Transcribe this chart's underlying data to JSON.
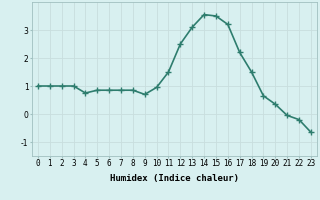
{
  "x": [
    0,
    1,
    2,
    3,
    4,
    5,
    6,
    7,
    8,
    9,
    10,
    11,
    12,
    13,
    14,
    15,
    16,
    17,
    18,
    19,
    20,
    21,
    22,
    23
  ],
  "y": [
    1.0,
    1.0,
    1.0,
    1.0,
    0.75,
    0.85,
    0.85,
    0.85,
    0.85,
    0.7,
    0.95,
    1.5,
    2.5,
    3.1,
    3.55,
    3.5,
    3.2,
    2.2,
    1.5,
    0.65,
    0.35,
    -0.05,
    -0.2,
    -0.65
  ],
  "line_color": "#2e7d6e",
  "marker": "P",
  "marker_size": 2.5,
  "bg_color": "#d8f0f0",
  "grid_color": "#c8dede",
  "xlabel": "Humidex (Indice chaleur)",
  "xlim": [
    -0.5,
    23.5
  ],
  "ylim": [
    -1.5,
    4.0
  ],
  "yticks": [
    -1,
    0,
    1,
    2,
    3
  ],
  "xtick_labels": [
    "0",
    "1",
    "2",
    "3",
    "4",
    "5",
    "6",
    "7",
    "8",
    "9",
    "10",
    "11",
    "12",
    "13",
    "14",
    "15",
    "16",
    "17",
    "18",
    "19",
    "20",
    "21",
    "22",
    "23"
  ],
  "xlabel_fontsize": 6.5,
  "tick_fontsize": 5.5,
  "linewidth": 1.2
}
